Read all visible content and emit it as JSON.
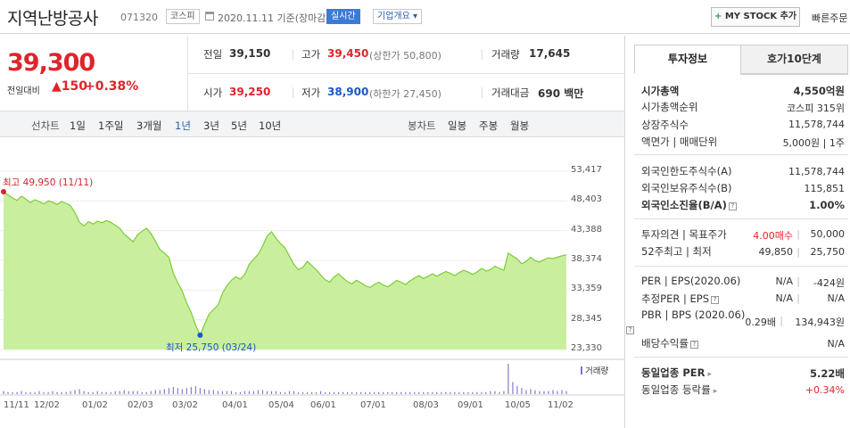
{
  "header": {
    "company_name": "지역난방공사",
    "code": "071320",
    "market_tag": "코스피",
    "date": "2020.11.11  기준(장마감)",
    "realtime_tag": "실시간",
    "info_tag": "기업개요 ▾",
    "mystock_label": "MY STOCK 추가",
    "quick_order": "빠른주문"
  },
  "price": {
    "current": "39,300",
    "vs_label": "전일대비",
    "change": "▲150",
    "change_pct": "+0.38%"
  },
  "quote": {
    "prev_label": "전일",
    "prev": "39,150",
    "high_label": "고가",
    "high": "39,450",
    "upper_limit": "(상한가 50,800)",
    "volume_label": "거래량",
    "volume": "17,645",
    "open_label": "시가",
    "open": "39,250",
    "low_label": "저가",
    "low": "38,900",
    "lower_limit": "(하한가 27,450)",
    "amount_label": "거래대금",
    "amount": "690 백만"
  },
  "period_bar": {
    "line_label": "선차트",
    "periods": [
      "1일",
      "1주일",
      "3개월",
      "1년",
      "3년",
      "5년",
      "10년"
    ],
    "selected_index": 3,
    "candle_label": "봉차트",
    "candles": [
      "일봉",
      "주봉",
      "월봉"
    ]
  },
  "chart_data": {
    "type": "area",
    "y_ticks": [
      "53,417",
      "48,403",
      "43,388",
      "38,374",
      "33,359",
      "28,345",
      "23,330"
    ],
    "ylim": [
      23330,
      53417
    ],
    "x_ticks": [
      "11/11",
      "12/02",
      "01/02",
      "02/03",
      "03/02",
      "04/01",
      "05/04",
      "06/01",
      "07/01",
      "08/03",
      "09/01",
      "10/05",
      "11/02"
    ],
    "high_annotation": "최고 49,950 (11/11)",
    "low_annotation": "최저 25,750 (03/24)",
    "volume_label": "거래량",
    "values": [
      49950,
      49400,
      48900,
      48500,
      49200,
      48700,
      48100,
      48600,
      48300,
      47900,
      48400,
      48200,
      47800,
      48300,
      48000,
      47600,
      46400,
      44800,
      44200,
      44900,
      44500,
      45000,
      44700,
      45100,
      44800,
      44300,
      43800,
      42800,
      42200,
      41500,
      42700,
      43300,
      43800,
      42900,
      41600,
      40200,
      39600,
      38900,
      36200,
      34600,
      33200,
      31200,
      29600,
      27400,
      25750,
      27600,
      29300,
      30100,
      30800,
      32800,
      34100,
      35000,
      35600,
      35200,
      36000,
      37700,
      38600,
      39400,
      40800,
      42500,
      43200,
      42100,
      41200,
      40500,
      39100,
      37700,
      36800,
      37200,
      38200,
      37500,
      36800,
      35900,
      35100,
      34700,
      35600,
      36100,
      35400,
      34800,
      34400,
      35000,
      34600,
      34100,
      33800,
      34300,
      34700,
      34200,
      33900,
      34400,
      35000,
      34700,
      34300,
      34900,
      35400,
      35800,
      35300,
      35700,
      36100,
      35700,
      36100,
      36500,
      36200,
      35800,
      36300,
      36700,
      36400,
      36000,
      36400,
      37000,
      36600,
      36800,
      37400,
      37000,
      36700,
      39600,
      39100,
      38600,
      37800,
      38200,
      38900,
      38300,
      38100,
      38500,
      38800,
      38700,
      38900,
      39150,
      39300
    ],
    "volume": [
      3,
      2,
      2,
      2,
      3,
      2,
      2,
      2,
      3,
      2,
      2,
      3,
      2,
      2,
      2,
      3,
      4,
      5,
      3,
      2,
      2,
      3,
      2,
      2,
      2,
      3,
      3,
      4,
      3,
      3,
      3,
      2,
      2,
      3,
      4,
      4,
      5,
      6,
      7,
      6,
      5,
      6,
      7,
      8,
      6,
      5,
      4,
      4,
      3,
      3,
      3,
      3,
      2,
      2,
      3,
      3,
      3,
      4,
      4,
      3,
      3,
      3,
      2,
      2,
      3,
      3,
      2,
      2,
      2,
      2,
      2,
      3,
      2,
      2,
      2,
      2,
      2,
      2,
      2,
      2,
      2,
      2,
      2,
      2,
      2,
      2,
      2,
      2,
      2,
      2,
      2,
      2,
      2,
      2,
      2,
      2,
      2,
      2,
      2,
      2,
      2,
      2,
      2,
      2,
      2,
      2,
      2,
      2,
      2,
      3,
      3,
      2,
      3,
      30,
      12,
      8,
      6,
      4,
      5,
      4,
      3,
      3,
      3,
      4,
      3,
      4,
      3
    ]
  },
  "right_panel": {
    "tab_invest": "투자정보",
    "tab_order": "호가10단계",
    "market_cap_label": "시가총액",
    "market_cap": "4,550억원",
    "cap_rank_label": "시가총액순위",
    "cap_rank": "코스피 315위",
    "shares_label": "상장주식수",
    "shares": "11,578,744",
    "par_label": "액면가 | 매매단위",
    "par": "5,000원 | 1주",
    "foreign_limit_label": "외국인한도주식수(A)",
    "foreign_limit": "11,578,744",
    "foreign_hold_label": "외국인보유주식수(B)",
    "foreign_hold": "115,851",
    "foreign_ratio_label": "외국인소진율(B/A)",
    "foreign_ratio": "1.00%",
    "opinion_label": "투자의견 | 목표주가",
    "opinion": "4.00매수",
    "target": "50,000",
    "w52_label": "52주최고 | 최저",
    "w52_high": "49,850",
    "w52_low": "25,750",
    "per_label": "PER | EPS(2020.06)",
    "per": "N/A",
    "eps": "-424원",
    "est_per_label": "추정PER | EPS",
    "est_per": "N/A",
    "est_eps": "N/A",
    "pbr_label": "PBR | BPS (2020.06)",
    "pbr": "0.29배",
    "bps": "134,943원",
    "div_label": "배당수익률",
    "div": "N/A",
    "sector_per_label": "동일업종 PER",
    "sector_per": "5.22배",
    "sector_rate_label": "동일업종 등락률",
    "sector_rate": "+0.34%"
  }
}
